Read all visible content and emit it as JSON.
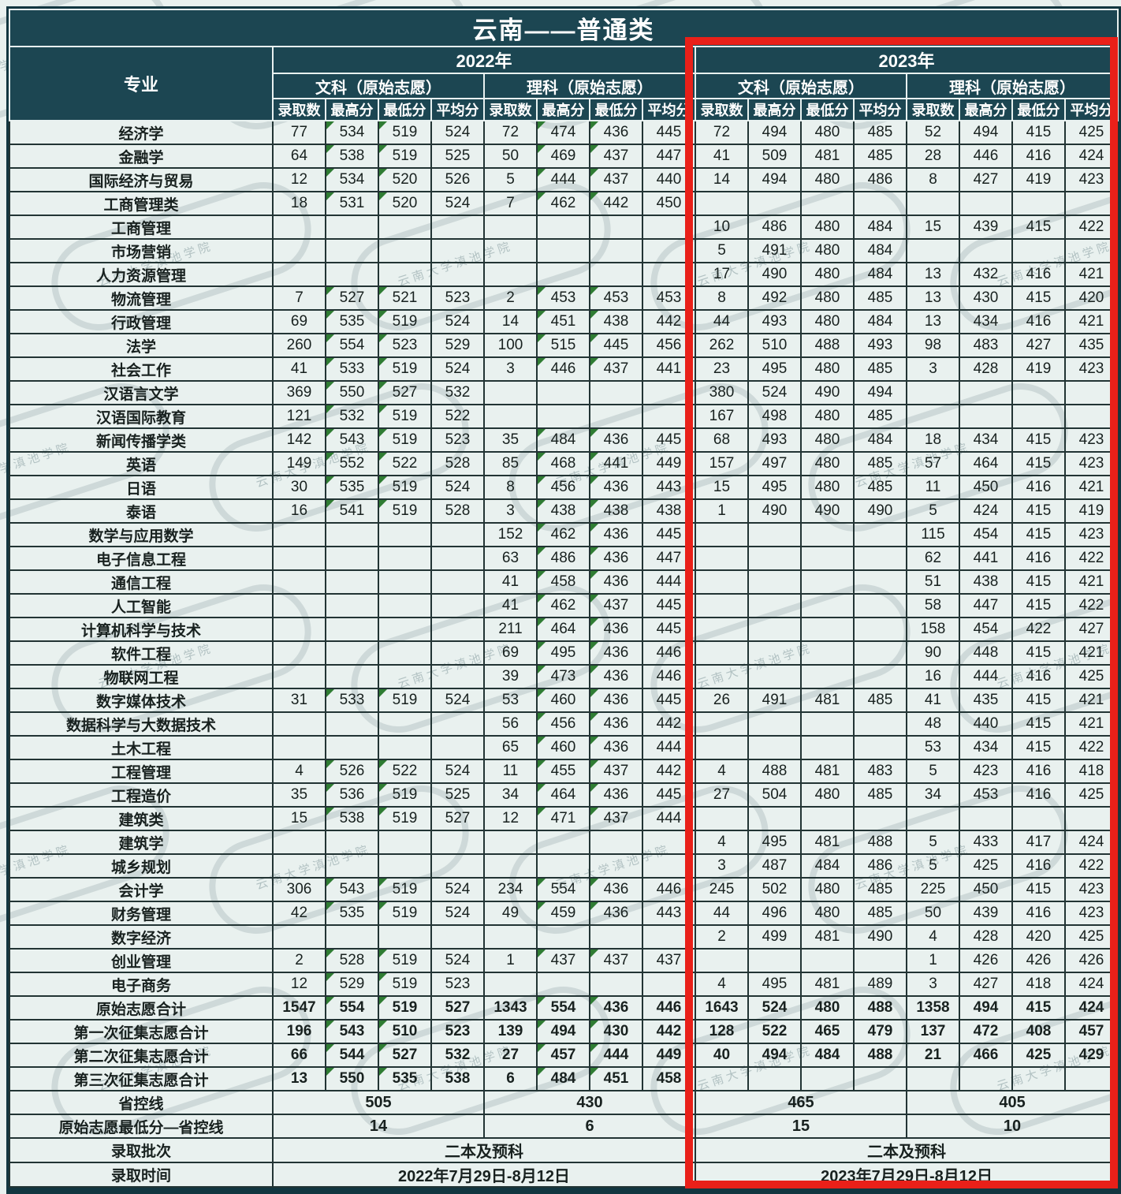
{
  "title": "云南——普通类",
  "watermark": "云南大学滇池学院",
  "colors": {
    "header_bg": "#1c4652",
    "body_bg": "#e9f1ef",
    "grid_border": "#223434",
    "header_border": "#e8f1f0",
    "highlight_red": "#e92019",
    "triangle_green": "#2f7c33"
  },
  "header": {
    "major_col": "专业",
    "years": [
      {
        "label": "2022年",
        "tracks": [
          {
            "label": "文科（原始志愿）"
          },
          {
            "label": "理科（原始志愿）"
          }
        ]
      },
      {
        "label": "2023年",
        "tracks": [
          {
            "label": "文科（原始志愿）"
          },
          {
            "label": "理科（原始志愿）"
          }
        ]
      }
    ],
    "metrics": [
      "录取数",
      "最高分",
      "最低分",
      "平均分"
    ]
  },
  "rows": [
    {
      "major": "经济学",
      "cells": [
        "77",
        "534",
        "519",
        "524",
        "72",
        "474",
        "436",
        "445",
        "72",
        "494",
        "480",
        "485",
        "52",
        "494",
        "415",
        "425"
      ]
    },
    {
      "major": "金融学",
      "cells": [
        "64",
        "538",
        "519",
        "525",
        "50",
        "469",
        "437",
        "447",
        "41",
        "509",
        "481",
        "485",
        "28",
        "446",
        "416",
        "424"
      ]
    },
    {
      "major": "国际经济与贸易",
      "cells": [
        "12",
        "534",
        "520",
        "526",
        "5",
        "444",
        "437",
        "440",
        "14",
        "494",
        "480",
        "486",
        "8",
        "427",
        "419",
        "423"
      ]
    },
    {
      "major": "工商管理类",
      "cells": [
        "18",
        "531",
        "520",
        "524",
        "7",
        "462",
        "442",
        "450",
        "",
        "",
        "",
        "",
        "",
        "",
        "",
        ""
      ]
    },
    {
      "major": "工商管理",
      "cells": [
        "",
        "",
        "",
        "",
        "",
        "",
        "",
        "",
        "10",
        "486",
        "480",
        "484",
        "15",
        "439",
        "415",
        "422"
      ]
    },
    {
      "major": "市场营销",
      "cells": [
        "",
        "",
        "",
        "",
        "",
        "",
        "",
        "",
        "5",
        "491",
        "480",
        "484",
        "",
        "",
        "",
        ""
      ]
    },
    {
      "major": "人力资源管理",
      "cells": [
        "",
        "",
        "",
        "",
        "",
        "",
        "",
        "",
        "17",
        "490",
        "480",
        "484",
        "13",
        "432",
        "416",
        "421"
      ]
    },
    {
      "major": "物流管理",
      "cells": [
        "7",
        "527",
        "521",
        "523",
        "2",
        "453",
        "453",
        "453",
        "8",
        "492",
        "480",
        "485",
        "13",
        "430",
        "415",
        "420"
      ]
    },
    {
      "major": "行政管理",
      "cells": [
        "69",
        "535",
        "519",
        "524",
        "14",
        "451",
        "438",
        "442",
        "44",
        "493",
        "480",
        "484",
        "13",
        "434",
        "416",
        "421"
      ]
    },
    {
      "major": "法学",
      "cells": [
        "260",
        "554",
        "523",
        "529",
        "100",
        "515",
        "445",
        "456",
        "262",
        "510",
        "488",
        "493",
        "98",
        "483",
        "427",
        "435"
      ]
    },
    {
      "major": "社会工作",
      "cells": [
        "41",
        "533",
        "519",
        "524",
        "3",
        "446",
        "437",
        "441",
        "23",
        "495",
        "480",
        "485",
        "3",
        "428",
        "419",
        "423"
      ]
    },
    {
      "major": "汉语言文学",
      "cells": [
        "369",
        "550",
        "527",
        "532",
        "",
        "",
        "",
        "",
        "380",
        "524",
        "490",
        "494",
        "",
        "",
        "",
        ""
      ]
    },
    {
      "major": "汉语国际教育",
      "cells": [
        "121",
        "532",
        "519",
        "522",
        "",
        "",
        "",
        "",
        "167",
        "498",
        "480",
        "485",
        "",
        "",
        "",
        ""
      ]
    },
    {
      "major": "新闻传播学类",
      "cells": [
        "142",
        "543",
        "519",
        "523",
        "35",
        "484",
        "436",
        "445",
        "68",
        "493",
        "480",
        "484",
        "18",
        "434",
        "415",
        "423"
      ]
    },
    {
      "major": "英语",
      "cells": [
        "149",
        "552",
        "522",
        "528",
        "85",
        "468",
        "441",
        "449",
        "157",
        "497",
        "480",
        "485",
        "57",
        "464",
        "415",
        "423"
      ]
    },
    {
      "major": "日语",
      "cells": [
        "30",
        "535",
        "519",
        "524",
        "8",
        "456",
        "436",
        "443",
        "15",
        "495",
        "480",
        "485",
        "11",
        "450",
        "416",
        "421"
      ]
    },
    {
      "major": "泰语",
      "cells": [
        "16",
        "541",
        "519",
        "528",
        "3",
        "438",
        "438",
        "438",
        "1",
        "490",
        "490",
        "490",
        "5",
        "424",
        "415",
        "419"
      ]
    },
    {
      "major": "数学与应用数学",
      "cells": [
        "",
        "",
        "",
        "",
        "152",
        "462",
        "436",
        "445",
        "",
        "",
        "",
        "",
        "115",
        "454",
        "415",
        "423"
      ]
    },
    {
      "major": "电子信息工程",
      "cells": [
        "",
        "",
        "",
        "",
        "63",
        "486",
        "436",
        "447",
        "",
        "",
        "",
        "",
        "62",
        "441",
        "416",
        "422"
      ]
    },
    {
      "major": "通信工程",
      "cells": [
        "",
        "",
        "",
        "",
        "41",
        "458",
        "436",
        "444",
        "",
        "",
        "",
        "",
        "51",
        "438",
        "415",
        "421"
      ]
    },
    {
      "major": "人工智能",
      "cells": [
        "",
        "",
        "",
        "",
        "41",
        "462",
        "437",
        "445",
        "",
        "",
        "",
        "",
        "58",
        "447",
        "415",
        "422"
      ]
    },
    {
      "major": "计算机科学与技术",
      "cells": [
        "",
        "",
        "",
        "",
        "211",
        "464",
        "436",
        "445",
        "",
        "",
        "",
        "",
        "158",
        "454",
        "422",
        "427"
      ]
    },
    {
      "major": "软件工程",
      "cells": [
        "",
        "",
        "",
        "",
        "69",
        "495",
        "436",
        "446",
        "",
        "",
        "",
        "",
        "90",
        "448",
        "415",
        "421"
      ]
    },
    {
      "major": "物联网工程",
      "cells": [
        "",
        "",
        "",
        "",
        "39",
        "473",
        "436",
        "446",
        "",
        "",
        "",
        "",
        "16",
        "444",
        "416",
        "425"
      ]
    },
    {
      "major": "数字媒体技术",
      "cells": [
        "31",
        "533",
        "519",
        "524",
        "53",
        "460",
        "436",
        "445",
        "26",
        "491",
        "481",
        "485",
        "41",
        "435",
        "415",
        "421"
      ]
    },
    {
      "major": "数据科学与大数据技术",
      "cells": [
        "",
        "",
        "",
        "",
        "56",
        "456",
        "436",
        "442",
        "",
        "",
        "",
        "",
        "48",
        "440",
        "415",
        "421"
      ]
    },
    {
      "major": "土木工程",
      "cells": [
        "",
        "",
        "",
        "",
        "65",
        "460",
        "436",
        "444",
        "",
        "",
        "",
        "",
        "53",
        "434",
        "415",
        "422"
      ]
    },
    {
      "major": "工程管理",
      "cells": [
        "4",
        "526",
        "522",
        "524",
        "11",
        "455",
        "437",
        "442",
        "4",
        "488",
        "481",
        "483",
        "5",
        "423",
        "416",
        "418"
      ]
    },
    {
      "major": "工程造价",
      "cells": [
        "35",
        "536",
        "519",
        "525",
        "34",
        "464",
        "436",
        "445",
        "27",
        "504",
        "480",
        "485",
        "34",
        "453",
        "416",
        "425"
      ]
    },
    {
      "major": "建筑类",
      "cells": [
        "15",
        "538",
        "519",
        "527",
        "12",
        "471",
        "437",
        "444",
        "",
        "",
        "",
        "",
        "",
        "",
        "",
        ""
      ]
    },
    {
      "major": "建筑学",
      "cells": [
        "",
        "",
        "",
        "",
        "",
        "",
        "",
        "",
        "4",
        "495",
        "481",
        "488",
        "5",
        "433",
        "417",
        "424"
      ]
    },
    {
      "major": "城乡规划",
      "cells": [
        "",
        "",
        "",
        "",
        "",
        "",
        "",
        "",
        "3",
        "487",
        "484",
        "486",
        "5",
        "425",
        "416",
        "422"
      ]
    },
    {
      "major": "会计学",
      "cells": [
        "306",
        "543",
        "519",
        "524",
        "234",
        "554",
        "436",
        "446",
        "245",
        "502",
        "480",
        "485",
        "225",
        "450",
        "415",
        "423"
      ]
    },
    {
      "major": "财务管理",
      "cells": [
        "42",
        "535",
        "519",
        "524",
        "49",
        "459",
        "436",
        "443",
        "44",
        "496",
        "480",
        "485",
        "50",
        "439",
        "416",
        "423"
      ]
    },
    {
      "major": "数字经济",
      "cells": [
        "",
        "",
        "",
        "",
        "",
        "",
        "",
        "",
        "2",
        "499",
        "481",
        "490",
        "4",
        "428",
        "420",
        "425"
      ]
    },
    {
      "major": "创业管理",
      "cells": [
        "2",
        "528",
        "519",
        "524",
        "1",
        "437",
        "437",
        "437",
        "",
        "",
        "",
        "",
        "1",
        "426",
        "426",
        "426"
      ]
    },
    {
      "major": "电子商务",
      "cells": [
        "12",
        "529",
        "519",
        "523",
        "",
        "",
        "",
        "",
        "4",
        "495",
        "481",
        "489",
        "3",
        "427",
        "418",
        "424"
      ]
    },
    {
      "major": "原始志愿合计",
      "bold": true,
      "cells": [
        "1547",
        "554",
        "519",
        "527",
        "1343",
        "554",
        "436",
        "446",
        "1643",
        "524",
        "480",
        "488",
        "1358",
        "494",
        "415",
        "424"
      ]
    },
    {
      "major": "第一次征集志愿合计",
      "bold": true,
      "cells": [
        "196",
        "543",
        "510",
        "523",
        "139",
        "494",
        "430",
        "442",
        "128",
        "522",
        "465",
        "479",
        "137",
        "472",
        "408",
        "457"
      ]
    },
    {
      "major": "第二次征集志愿合计",
      "bold": true,
      "cells": [
        "66",
        "544",
        "527",
        "532",
        "27",
        "457",
        "444",
        "449",
        "40",
        "494",
        "484",
        "488",
        "21",
        "466",
        "425",
        "429"
      ]
    },
    {
      "major": "第三次征集志愿合计",
      "bold": true,
      "cells": [
        "13",
        "550",
        "535",
        "538",
        "6",
        "484",
        "451",
        "458",
        "",
        "",
        "",
        "",
        "",
        "",
        "",
        ""
      ]
    }
  ],
  "footer_rows": [
    {
      "label": "省控线",
      "span": 4,
      "values": [
        "505",
        "430",
        "465",
        "405"
      ]
    },
    {
      "label": "原始志愿最低分—省控线",
      "span": 4,
      "values": [
        "14",
        "6",
        "15",
        "10"
      ]
    },
    {
      "label": "录取批次",
      "span": 8,
      "values": [
        "二本及预科",
        "二本及预科"
      ]
    },
    {
      "label": "录取时间",
      "span": 8,
      "values": [
        "2022年7月29日-8月12日",
        "2023年7月29日-8月12日"
      ]
    }
  ]
}
